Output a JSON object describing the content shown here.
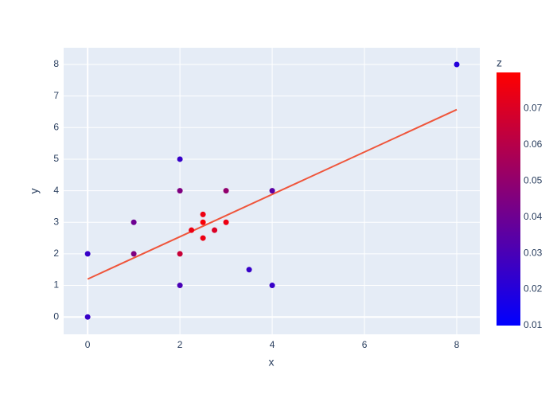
{
  "chart_data": {
    "type": "scatter",
    "x": [
      0,
      0,
      1,
      1,
      2,
      2,
      2,
      2,
      2.25,
      2.5,
      2.5,
      2.5,
      2.75,
      3,
      3,
      3.5,
      4,
      4,
      8
    ],
    "y": [
      0,
      2,
      3,
      2,
      5,
      4,
      2,
      1,
      2.75,
      3.25,
      3,
      2.5,
      2.75,
      3,
      4,
      1.5,
      4,
      1,
      8
    ],
    "z": [
      0.025,
      0.025,
      0.04,
      0.045,
      0.025,
      0.045,
      0.065,
      0.03,
      0.075,
      0.075,
      0.078,
      0.075,
      0.07,
      0.075,
      0.05,
      0.025,
      0.035,
      0.025,
      0.02
    ],
    "trendline": {
      "x": [
        0,
        8
      ],
      "y": [
        1.2,
        6.57
      ],
      "color": "#ef553b"
    },
    "xlabel": "x",
    "ylabel": "y",
    "xlim": [
      -0.52,
      8.5
    ],
    "ylim": [
      -0.55,
      8.53
    ],
    "xticks": [
      0,
      2,
      4,
      6,
      8
    ],
    "yticks": [
      0,
      1,
      2,
      3,
      4,
      5,
      6,
      7,
      8
    ],
    "grid": true,
    "colorbar_title": "z",
    "colorscale": [
      "#0000ff",
      "#ff0000"
    ],
    "zlim": [
      0.01,
      0.08
    ],
    "zticks": [
      0.01,
      0.02,
      0.03,
      0.04,
      0.05,
      0.06,
      0.07
    ]
  }
}
